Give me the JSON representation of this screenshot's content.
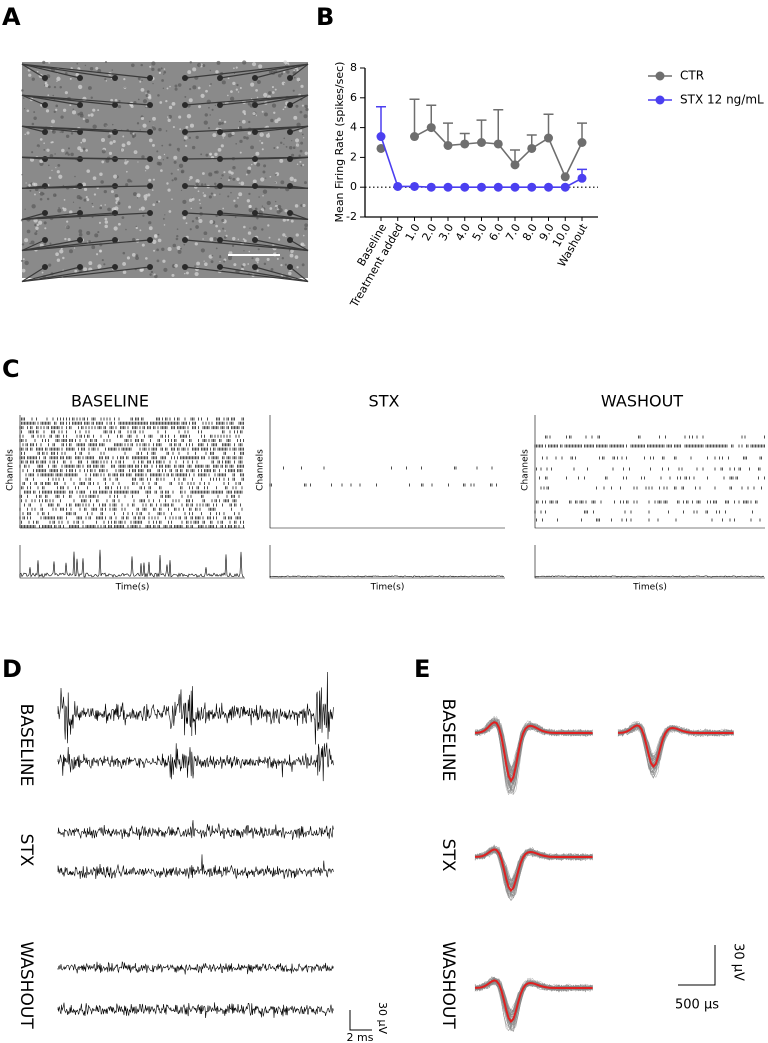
{
  "panel_labels": [
    "A",
    "B",
    "C",
    "D",
    "E"
  ],
  "chart_data": {
    "type": "line",
    "y_label": "Mean Firing Rate (spikes/sec)",
    "categories": [
      "Baseline",
      "Treatment added",
      "1.0",
      "2.0",
      "3.0",
      "4.0",
      "5.0",
      "6.0",
      "7.0",
      "8.0",
      "9.0",
      "10.0",
      "Washout"
    ],
    "series": [
      {
        "name": "CTR",
        "color": "#6e6e6e",
        "values": [
          2.6,
          null,
          3.4,
          4.0,
          2.8,
          2.9,
          3.0,
          2.9,
          1.5,
          2.6,
          3.3,
          0.7,
          3.0
        ],
        "errors": [
          null,
          null,
          2.5,
          1.5,
          1.5,
          0.7,
          1.5,
          2.3,
          1.0,
          0.9,
          1.6,
          null,
          1.3
        ]
      },
      {
        "name": "STX 12 ng/mL",
        "color": "#4b3ff0",
        "values": [
          3.4,
          0.05,
          0.05,
          0,
          0,
          0,
          0,
          0,
          0,
          0,
          0,
          0,
          0.6
        ],
        "errors": [
          2.0,
          null,
          null,
          null,
          null,
          null,
          null,
          null,
          null,
          null,
          null,
          null,
          0.6
        ]
      }
    ],
    "ylim": [
      -2,
      8
    ],
    "yticks": [
      -2,
      0,
      2,
      4,
      6,
      8
    ],
    "legend": "right"
  },
  "panel_c": {
    "titles": [
      "BASELINE",
      "STX",
      "WASHOUT"
    ],
    "y_label": "Channels",
    "x_label": "Time(s)"
  },
  "panel_d": {
    "rows": [
      "BASELINE",
      "STX",
      "WASHOUT"
    ],
    "scale_v": "30 µV",
    "scale_t": "2 ms"
  },
  "panel_e": {
    "rows": [
      "BASELINE",
      "STX",
      "WASHOUT"
    ],
    "scale_v": "30 µV",
    "scale_t": "500 µs"
  }
}
